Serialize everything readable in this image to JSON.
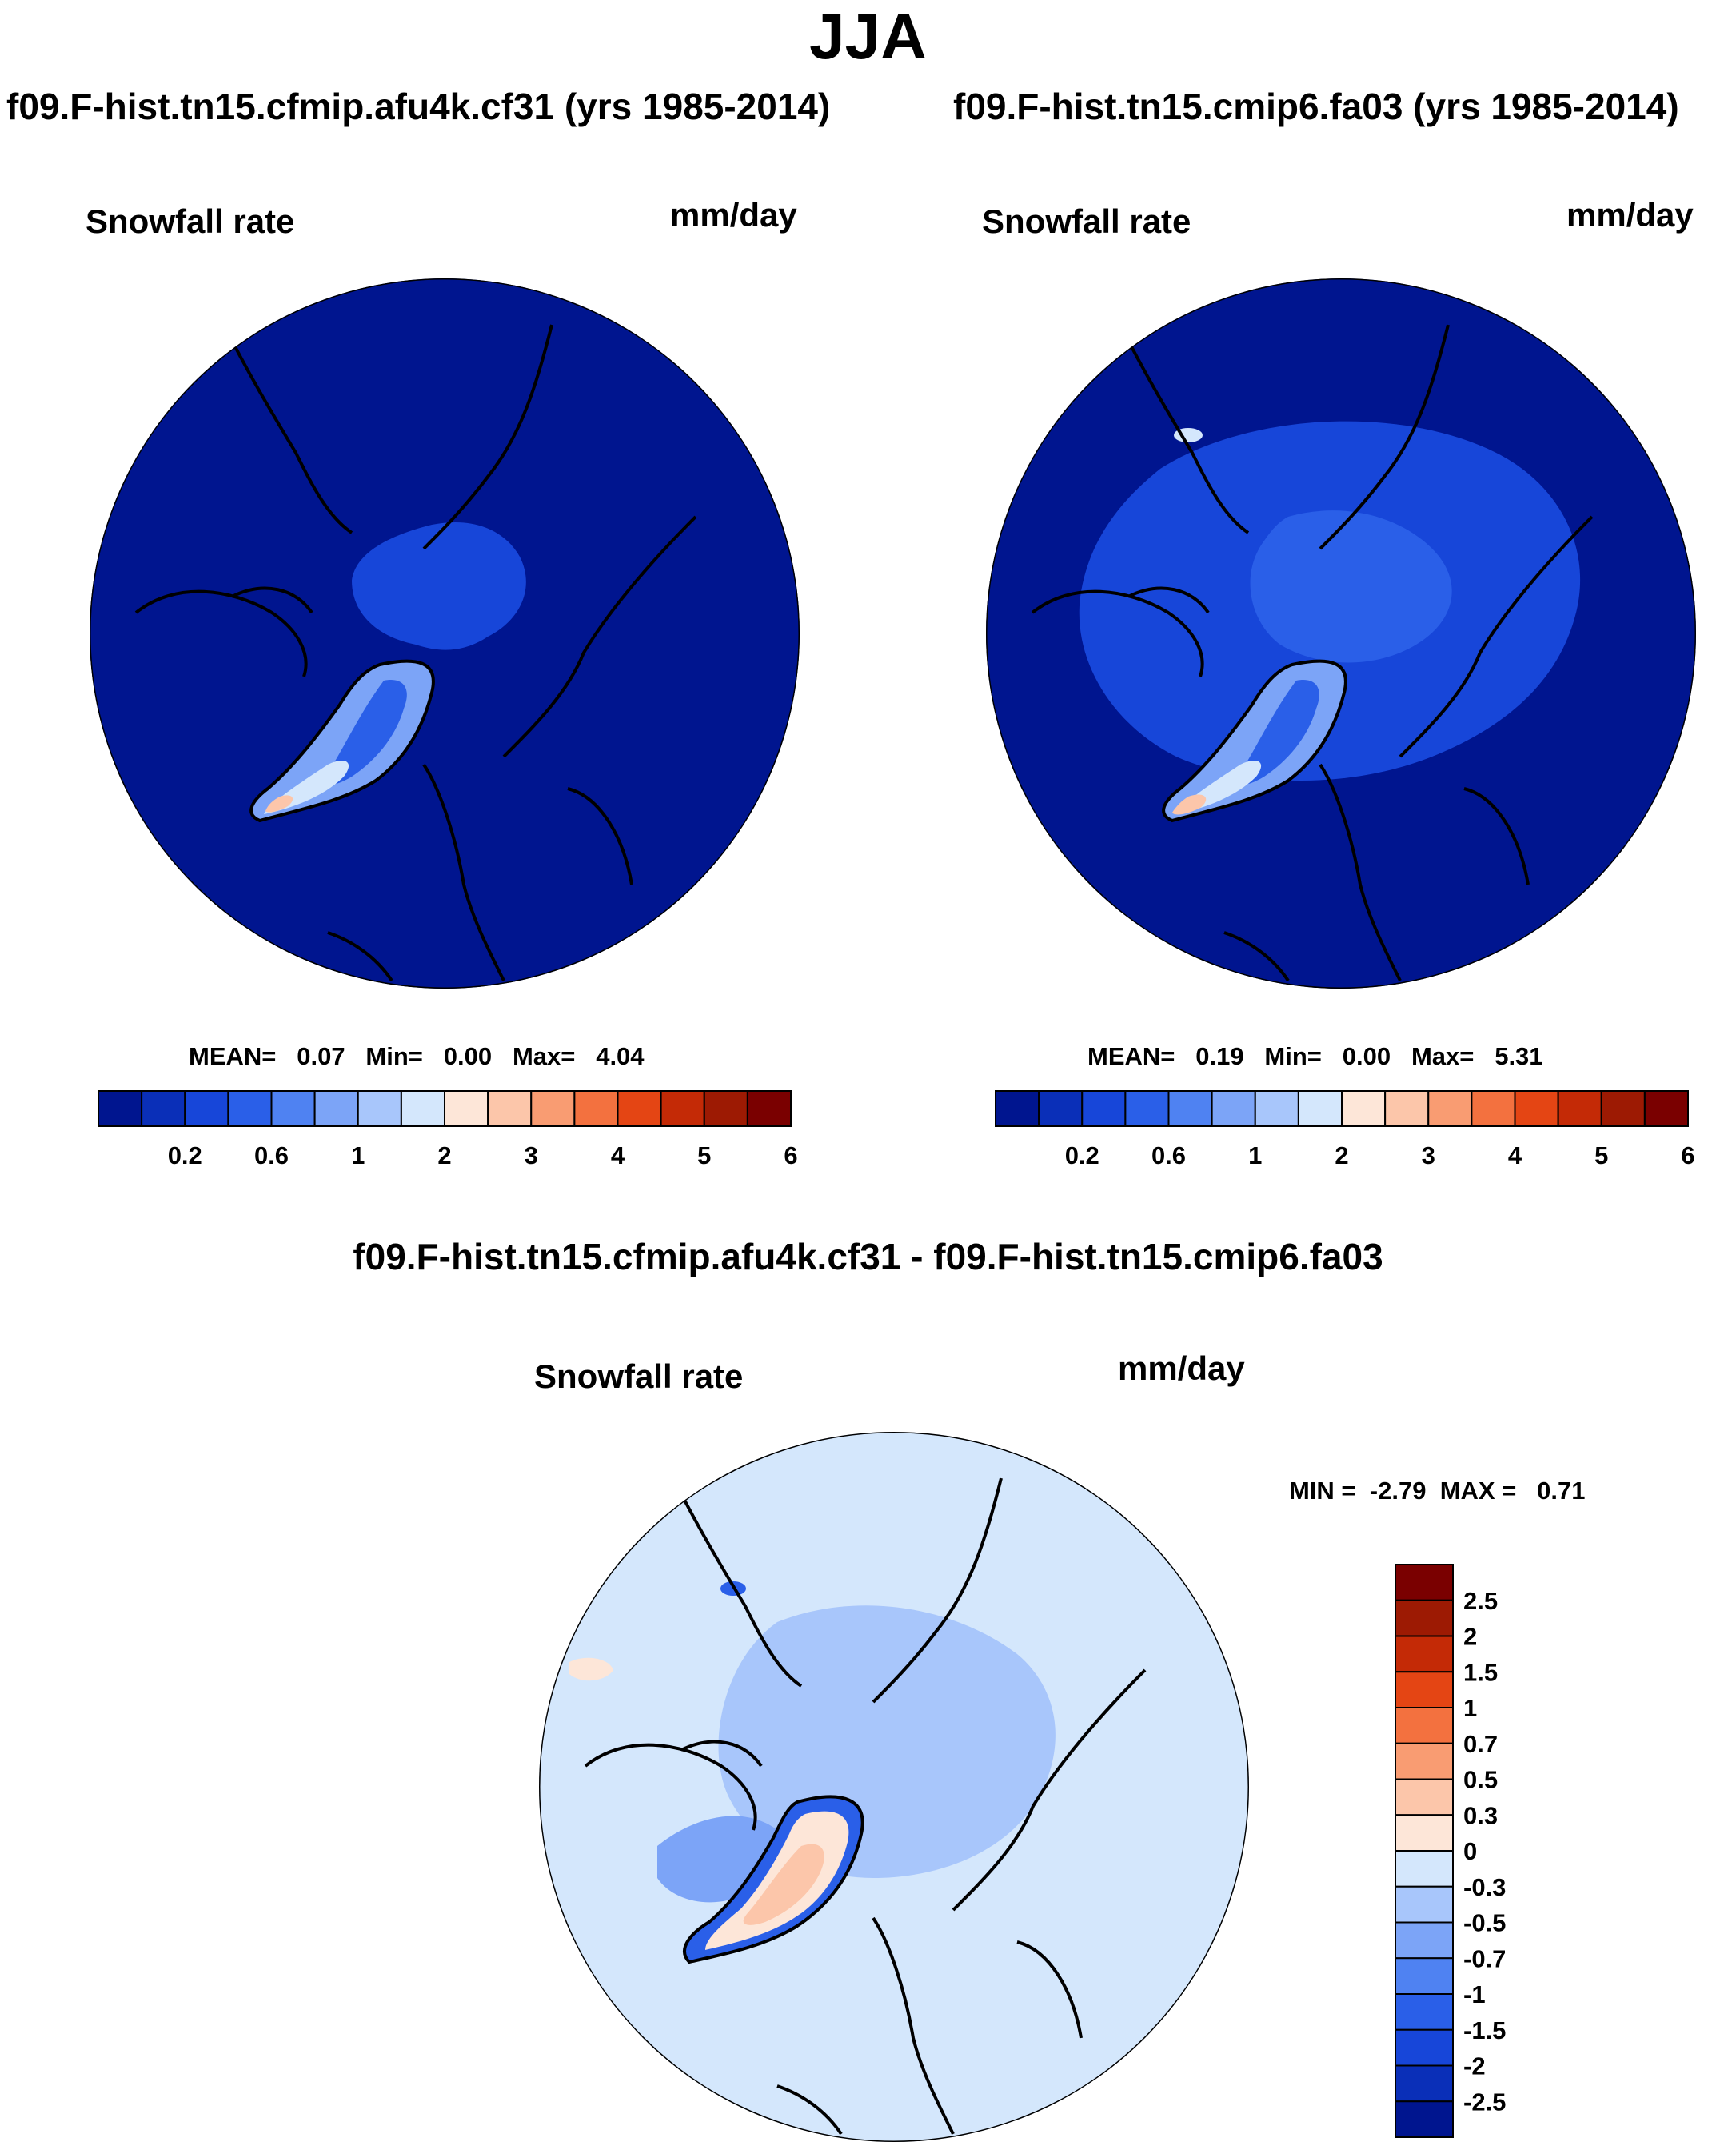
{
  "title": "JJA",
  "panels": [
    {
      "id": "left",
      "case_title": "f09.F-hist.tn15.cfmip.afu4k.cf31 (yrs 1985-2014)",
      "variable": "Snowfall rate",
      "units": "mm/day",
      "stats": {
        "mean_label": "MEAN=",
        "mean": "0.07",
        "min_label": "Min=",
        "min": "0.00",
        "max_label": "Max=",
        "max": "4.04"
      }
    },
    {
      "id": "right",
      "case_title": "f09.F-hist.tn15.cmip6.fa03 (yrs 1985-2014)",
      "variable": "Snowfall rate",
      "units": "mm/day",
      "stats": {
        "mean_label": "MEAN=",
        "mean": "0.19",
        "min_label": "Min=",
        "min": "0.00",
        "max_label": "Max=",
        "max": "5.31"
      }
    }
  ],
  "diff_panel": {
    "case_title": "f09.F-hist.tn15.cfmip.afu4k.cf31 - f09.F-hist.tn15.cmip6.fa03",
    "variable": "Snowfall rate",
    "units": "mm/day",
    "stats": {
      "min_label": "MIN =",
      "min": "-2.79",
      "max_label": "MAX =",
      "max": "0.71"
    }
  },
  "colorbar_abs": {
    "colors": [
      "#00158f",
      "#0a2fb8",
      "#1746d9",
      "#2a5fe8",
      "#4f82f2",
      "#7ca4f7",
      "#a8c6fb",
      "#d4e7fc",
      "#fde6d8",
      "#fcc6aa",
      "#f99c72",
      "#f3713f",
      "#e44514",
      "#c42a06",
      "#9d1a03",
      "#7a0000"
    ],
    "tick_labels": [
      "0.2",
      "0.6",
      "1",
      "2",
      "3",
      "4",
      "5",
      "6"
    ]
  },
  "colorbar_diff": {
    "colors": [
      "#00158f",
      "#0a2fb8",
      "#1746d9",
      "#2a5fe8",
      "#4f82f2",
      "#7ca4f7",
      "#a8c6fb",
      "#d4e7fc",
      "#fde6d8",
      "#fcc6aa",
      "#f99c72",
      "#f3713f",
      "#e44514",
      "#c42a06",
      "#9d1a03",
      "#7a0000"
    ],
    "tick_labels": [
      "-2.5",
      "-2",
      "-1.5",
      "-1",
      "-0.7",
      "-0.5",
      "-0.3",
      "0",
      "0.3",
      "0.5",
      "0.7",
      "1",
      "1.5",
      "2",
      "2.5"
    ]
  },
  "map_colors": {
    "abs_background": "#00158f",
    "abs_low": "#1746d9",
    "abs_mid": "#2a5fe8",
    "abs_high": "#7ca4f7",
    "abs_peak": "#d4e7fc",
    "abs_warm": "#fcc6aa",
    "diff_background": "#d4e7fc",
    "diff_neg": "#a8c6fb",
    "diff_neg2": "#7ca4f7",
    "diff_neg3": "#2a5fe8",
    "diff_pos": "#fde6d8",
    "diff_pos2": "#fcc6aa"
  }
}
